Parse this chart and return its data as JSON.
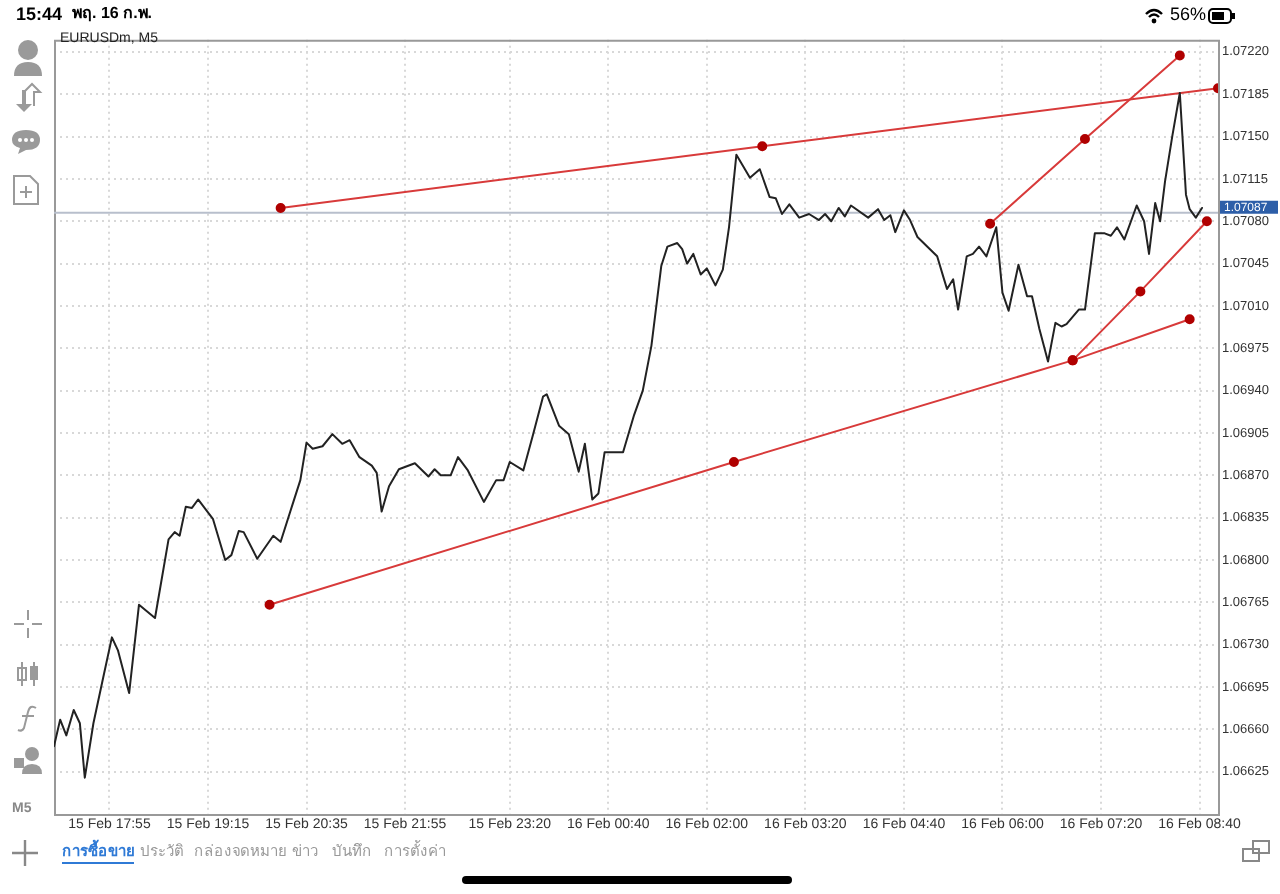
{
  "chart_data": {
    "type": "line",
    "title": "EURUSDm, M5",
    "xlim": [
      "--02-15T17:10",
      "--02-16T08:55"
    ],
    "xticks": [
      {
        "value": "--02-15T17:55",
        "label": "15 Feb 17:55"
      },
      {
        "value": "--02-15T19:15",
        "label": "15 Feb 19:15"
      },
      {
        "value": "--02-15T20:35",
        "label": "15 Feb 20:35"
      },
      {
        "value": "--02-15T21:55",
        "label": "15 Feb 21:55"
      },
      {
        "value": "--02-15T23:20",
        "label": "15 Feb 23:20"
      },
      {
        "value": "--02-16T00:40",
        "label": "16 Feb 00:40"
      },
      {
        "value": "--02-16T02:00",
        "label": "16 Feb 02:00"
      },
      {
        "value": "--02-16T03:20",
        "label": "16 Feb 03:20"
      },
      {
        "value": "--02-16T04:40",
        "label": "16 Feb 04:40"
      },
      {
        "value": "--02-16T06:00",
        "label": "16 Feb 06:00"
      },
      {
        "value": "--02-16T07:20",
        "label": "16 Feb 07:20"
      },
      {
        "value": "--02-16T08:40",
        "label": "16 Feb 08:40"
      }
    ],
    "ylim": [
      1.0659,
      1.0723
    ],
    "yticks": [
      1.06625,
      {
        "value": 1.0666,
        "label": "1.06660"
      },
      1.06695,
      {
        "value": 1.0673,
        "label": "1.06730"
      },
      1.06765,
      {
        "value": 1.068,
        "label": "1.06800"
      },
      1.06835,
      {
        "value": 1.0687,
        "label": "1.06870"
      },
      1.06905,
      {
        "value": 1.0694,
        "label": "1.06940"
      },
      1.06975,
      {
        "value": 1.0701,
        "label": "1.07010"
      },
      1.07045,
      {
        "value": 1.0708,
        "label": "1.07080"
      },
      1.07115,
      {
        "value": 1.0715,
        "label": "1.07150"
      },
      1.07185,
      {
        "value": 1.0722,
        "label": "1.07220"
      }
    ],
    "grid": true,
    "series": [
      {
        "color": "#222222",
        "x": [
          "--02-15T17:10",
          "--02-15T17:15",
          "--02-15T17:20",
          "--02-15T17:26",
          "--02-15T17:31",
          "--02-15T17:35",
          "--02-15T17:42",
          "--02-15T17:50",
          "--02-15T17:57",
          "--02-15T18:02",
          "--02-15T18:11",
          "--02-15T18:19",
          "--02-15T18:32",
          "--02-15T18:43",
          "--02-15T18:48",
          "--02-15T18:52",
          "--02-15T18:57",
          "--02-15T19:02",
          "--02-15T19:07",
          "--02-15T19:19",
          "--02-15T19:29",
          "--02-15T19:34",
          "--02-15T19:40",
          "--02-15T19:44",
          "--02-15T19:55",
          "--02-15T20:08",
          "--02-15T20:14",
          "--02-15T20:24",
          "--02-15T20:30",
          "--02-15T20:35",
          "--02-15T20:40",
          "--02-15T20:48",
          "--02-15T20:56",
          "--02-15T21:04",
          "--02-15T21:10",
          "--02-15T21:18",
          "--02-15T21:28",
          "--02-15T21:32",
          "--02-15T21:36",
          "--02-15T21:42",
          "--02-15T21:50",
          "--02-15T22:03",
          "--02-15T22:14",
          "--02-15T22:19",
          "--02-15T22:24",
          "--02-15T22:32",
          "--02-15T22:38",
          "--02-15T22:46",
          "--02-15T22:59",
          "--02-15T23:09",
          "--02-15T23:15",
          "--02-15T23:20",
          "--02-15T23:31",
          "--02-15T23:39",
          "--02-15T23:47",
          "--02-15T23:50",
          "--02-16T00:00",
          "--02-16T00:08",
          "--02-16T00:16",
          "--02-16T00:21",
          "--02-16T00:27",
          "--02-16T00:32",
          "--02-16T00:37",
          "--02-16T00:52",
          "--02-16T01:01",
          "--02-16T01:08",
          "--02-16T01:15",
          "--02-16T01:23",
          "--02-16T01:28",
          "--02-16T01:36",
          "--02-16T01:40",
          "--02-16T01:44",
          "--02-16T01:49",
          "--02-16T01:55",
          "--02-16T02:00",
          "--02-16T02:07",
          "--02-16T02:13",
          "--02-16T02:18",
          "--02-16T02:24",
          "--02-16T02:35",
          "--02-16T02:43",
          "--02-16T02:51",
          "--02-16T02:56",
          "--02-16T03:01",
          "--02-16T03:07",
          "--02-16T03:15",
          "--02-16T03:23",
          "--02-16T03:31",
          "--02-16T03:36",
          "--02-16T03:41",
          "--02-16T03:47",
          "--02-16T03:52",
          "--02-16T03:57",
          "--02-16T04:11",
          "--02-16T04:19",
          "--02-16T04:24",
          "--02-16T04:29",
          "--02-16T04:33",
          "--02-16T04:40",
          "--02-16T04:45",
          "--02-16T04:51",
          "--02-16T05:07",
          "--02-16T05:12",
          "--02-16T05:15",
          "--02-16T05:20",
          "--02-16T05:24",
          "--02-16T05:31",
          "--02-16T05:36",
          "--02-16T05:41",
          "--02-16T05:47",
          "--02-16T05:55",
          "--02-16T06:00",
          "--02-16T06:05",
          "--02-16T06:13",
          "--02-16T06:20",
          "--02-16T06:24",
          "--02-16T06:30",
          "--02-16T06:37",
          "--02-16T06:43",
          "--02-16T06:48",
          "--02-16T06:52",
          "--02-16T07:02",
          "--02-16T07:07",
          "--02-16T07:15",
          "--02-16T07:23",
          "--02-16T07:28",
          "--02-16T07:33",
          "--02-16T07:39",
          "--02-16T07:49",
          "--02-16T07:55",
          "--02-16T07:59",
          "--02-16T08:04",
          "--02-16T08:08",
          "--02-16T08:12",
          "--02-16T08:18",
          "--02-16T08:24",
          "--02-16T08:29",
          "--02-16T08:32",
          "--02-16T08:37",
          "--02-16T08:42"
        ],
        "values": [
          1.06646,
          1.06668,
          1.06655,
          1.06676,
          1.06665,
          1.0662,
          1.06665,
          1.06703,
          1.06736,
          1.06725,
          1.0669,
          1.06763,
          1.06752,
          1.06817,
          1.06823,
          1.0682,
          1.06844,
          1.06843,
          1.0685,
          1.06834,
          1.068,
          1.06804,
          1.06824,
          1.06823,
          1.06801,
          1.0682,
          1.06815,
          1.06847,
          1.06866,
          1.06897,
          1.06892,
          1.06894,
          1.06904,
          1.06896,
          1.06899,
          1.06885,
          1.06878,
          1.06872,
          1.0684,
          1.06861,
          1.06875,
          1.0688,
          1.06869,
          1.06875,
          1.0687,
          1.0687,
          1.06885,
          1.06874,
          1.06848,
          1.06866,
          1.06866,
          1.06881,
          1.06874,
          1.06904,
          1.06935,
          1.06937,
          1.06911,
          1.06904,
          1.06873,
          1.06896,
          1.0685,
          1.06855,
          1.06889,
          1.06889,
          1.0692,
          1.0694,
          1.06977,
          1.07043,
          1.07059,
          1.07062,
          1.07057,
          1.07045,
          1.07053,
          1.07036,
          1.07041,
          1.07027,
          1.0704,
          1.07075,
          1.07135,
          1.07116,
          1.07123,
          1.071,
          1.07099,
          1.07086,
          1.07094,
          1.07083,
          1.07086,
          1.07081,
          1.07086,
          1.0708,
          1.07091,
          1.07084,
          1.07093,
          1.07083,
          1.0709,
          1.07081,
          1.07085,
          1.07071,
          1.07089,
          1.07081,
          1.07067,
          1.07051,
          1.07034,
          1.07024,
          1.07032,
          1.07007,
          1.07051,
          1.07053,
          1.07059,
          1.07051,
          1.07075,
          1.07021,
          1.07006,
          1.07044,
          1.07018,
          1.07018,
          1.06991,
          1.06964,
          1.06996,
          1.06993,
          1.06995,
          1.07007,
          1.07007,
          1.0707,
          1.0707,
          1.07068,
          1.07075,
          1.07065,
          1.07093,
          1.0708,
          1.07053,
          1.07095,
          1.0708,
          1.07113,
          1.07151,
          1.07186,
          1.07102,
          1.0709,
          1.07083,
          1.07091
        ]
      },
      {
        "type": "line",
        "color": "#d83a3a",
        "marker": "circle",
        "x": [
          "--02-15T20:14",
          "--02-16T02:45",
          "--02-16T08:55"
        ],
        "values": [
          1.07091,
          1.07142,
          1.0719
        ]
      },
      {
        "type": "line",
        "color": "#d83a3a",
        "marker": "circle",
        "x": [
          "--02-15T20:05",
          "--02-16T02:22",
          "--02-16T06:57",
          "--02-16T08:32"
        ],
        "values": [
          1.06763,
          1.06881,
          1.06965,
          1.06999
        ]
      },
      {
        "type": "line",
        "color": "#d83a3a",
        "marker": "circle",
        "x": [
          "--02-16T06:57",
          "--02-16T07:52",
          "--02-16T08:46"
        ],
        "values": [
          1.06965,
          1.07022,
          1.0708
        ]
      },
      {
        "type": "line",
        "color": "#d83a3a",
        "marker": "circle",
        "x": [
          "--02-16T05:50",
          "--02-16T07:07",
          "--02-16T08:24"
        ],
        "values": [
          1.07078,
          1.07148,
          1.07217
        ]
      }
    ],
    "ref_lines": [
      {
        "axis": "y",
        "value": 1.07087,
        "label": "1.07087",
        "color": "#b8bfcc"
      }
    ],
    "annotations": [
      "15:44",
      "พฤ. 16 ก.พ.",
      "56%",
      "M5",
      "การซื้อขาย",
      "ประวัติ",
      "กล่องจดหมาย",
      "ข่าว",
      "บันทึก",
      "การตั้งค่า"
    ]
  }
}
